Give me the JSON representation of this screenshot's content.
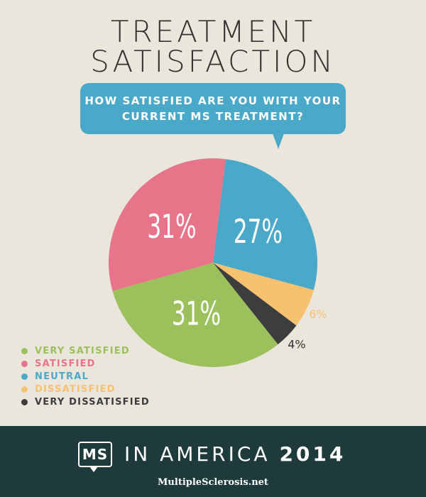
{
  "header": {
    "title_line1": "TREATMENT",
    "title_line2": "SATISFACTION"
  },
  "question": {
    "line1": "HOW SATISFIED ARE YOU WITH YOUR",
    "line2": "CURRENT MS TREATMENT?"
  },
  "chart_data": {
    "type": "pie",
    "categories": [
      "VERY SATISFIED",
      "SATISFIED",
      "NEUTRAL",
      "DISSATISFIED",
      "VERY DISSATISFIED"
    ],
    "values": [
      31,
      31,
      27,
      6,
      4
    ],
    "labels": [
      "31%",
      "31%",
      "27%",
      "6%",
      "4%"
    ],
    "colors": [
      "#9cc05c",
      "#e87489",
      "#4aa9c9",
      "#f7c26f",
      "#3d3d3d"
    ],
    "legend": "bottom-left"
  },
  "footer": {
    "logo_text": "MS",
    "brand": "IN AMERICA",
    "year": "2014",
    "site": "MultipleSclerosis.net"
  }
}
